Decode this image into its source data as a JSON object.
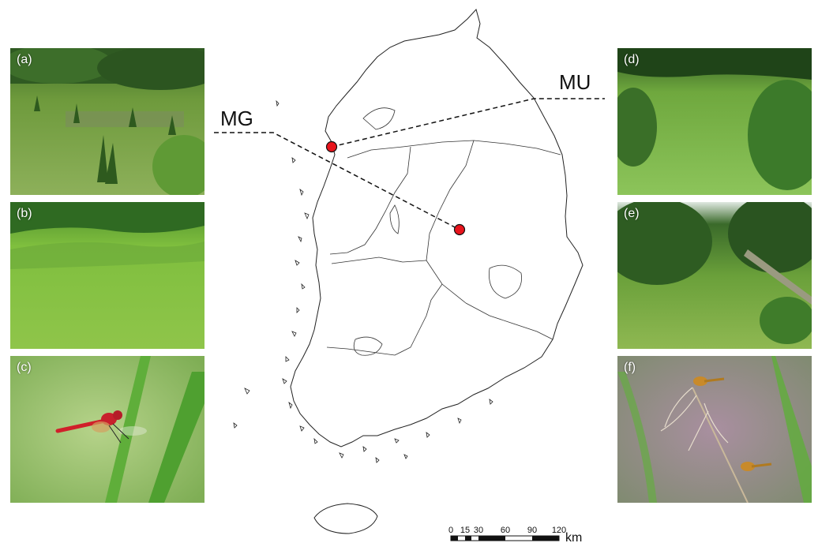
{
  "panels": [
    {
      "label": "(a)",
      "kind": "wetland-habitat-photo"
    },
    {
      "label": "(b)",
      "kind": "grassland-habitat-photo"
    },
    {
      "label": "(c)",
      "kind": "red-dragonfly-photo"
    },
    {
      "label": "(d)",
      "kind": "wetland-habitat-photo"
    },
    {
      "label": "(e)",
      "kind": "wetland-habitat-photo"
    },
    {
      "label": "(f)",
      "kind": "dragonflies-on-reed-photo"
    }
  ],
  "map": {
    "sites": [
      {
        "label": "MG"
      },
      {
        "label": "MU"
      }
    ],
    "marker_color": "#e8141c",
    "scale_bar": {
      "ticks": [
        "0",
        "15",
        "30",
        "60",
        "90",
        "120"
      ],
      "unit": "km"
    }
  }
}
